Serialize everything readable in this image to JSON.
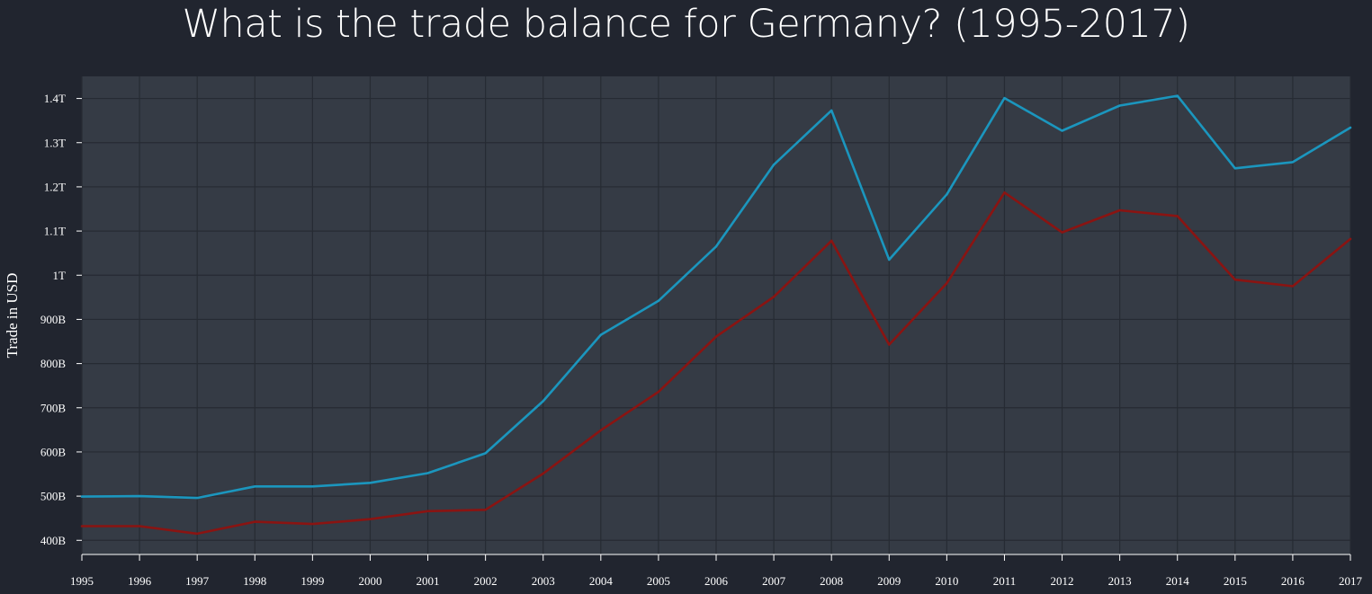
{
  "chart_data": {
    "type": "line",
    "title": "What is the trade balance for Germany? (1995-2017)",
    "xlabel": "",
    "ylabel": "Trade in USD",
    "x": [
      1995,
      1996,
      1997,
      1998,
      1999,
      2000,
      2001,
      2002,
      2003,
      2004,
      2005,
      2006,
      2007,
      2008,
      2009,
      2010,
      2011,
      2012,
      2013,
      2014,
      2015,
      2016,
      2017
    ],
    "x_tick_labels": [
      "1995",
      "1996",
      "1997",
      "1998",
      "1999",
      "2000",
      "2001",
      "2002",
      "2003",
      "2004",
      "2005",
      "2006",
      "2007",
      "2008",
      "2009",
      "2010",
      "2011",
      "2012",
      "2013",
      "2014",
      "2015",
      "2016",
      "2017"
    ],
    "y_ticks": [
      400000000000,
      500000000000,
      600000000000,
      700000000000,
      800000000000,
      900000000000,
      1000000000000,
      1100000000000,
      1200000000000,
      1300000000000,
      1400000000000
    ],
    "y_tick_labels": [
      "400B",
      "500B",
      "600B",
      "700B",
      "800B",
      "900B",
      "1T",
      "1.1T",
      "1.2T",
      "1.3T",
      "1.4T"
    ],
    "ylim": [
      368000000000,
      1450000000000
    ],
    "grid": true,
    "series": [
      {
        "color": "#1b96be",
        "values": [
          499000000000,
          500000000000,
          496000000000,
          522000000000,
          522000000000,
          530000000000,
          552000000000,
          597000000000,
          715000000000,
          865000000000,
          942000000000,
          1065000000000,
          1250000000000,
          1373000000000,
          1035000000000,
          1183000000000,
          1401000000000,
          1327000000000,
          1384000000000,
          1406000000000,
          1242000000000,
          1256000000000,
          1334000000000
        ]
      },
      {
        "color": "#8a1412",
        "values": [
          432000000000,
          432000000000,
          415000000000,
          442000000000,
          437000000000,
          448000000000,
          466000000000,
          469000000000,
          551000000000,
          649000000000,
          736000000000,
          861000000000,
          951000000000,
          1078000000000,
          843000000000,
          982000000000,
          1187000000000,
          1097000000000,
          1147000000000,
          1134000000000,
          990000000000,
          975000000000,
          1082000000000
        ]
      }
    ]
  }
}
